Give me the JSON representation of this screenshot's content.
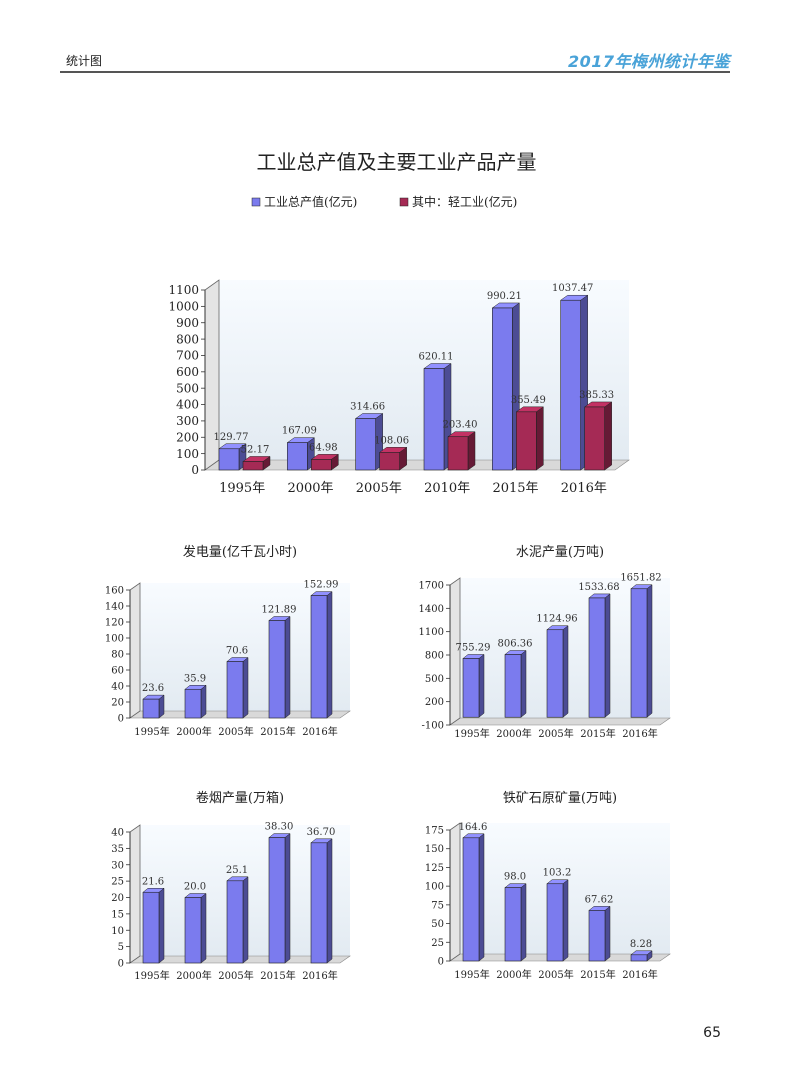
{
  "header": {
    "section": "统计图",
    "yearbook": "2017年梅州统计年鉴"
  },
  "page_number": "65",
  "chart_data": [
    {
      "id": "industry",
      "type": "bar",
      "title": "工业总产值及主要工业产品产量",
      "legend_position": "top",
      "categories": [
        "1995年",
        "2000年",
        "2005年",
        "2010年",
        "2015年",
        "2016年"
      ],
      "series": [
        {
          "name": "工业总产值(亿元)",
          "color": "#7b7bee",
          "values": [
            129.77,
            167.09,
            314.66,
            620.11,
            990.21,
            1037.47
          ],
          "labels": [
            "129.77",
            "167.09",
            "314.66",
            "620.11",
            "990.21",
            "1037.47"
          ]
        },
        {
          "name": "其中：轻工业(亿元)",
          "color": "#a52a55",
          "values": [
            52.17,
            64.98,
            108.06,
            203.4,
            355.49,
            385.33
          ],
          "labels": [
            "52.17",
            "64.98",
            "108.06",
            "203.40",
            "355.49",
            "385.33"
          ]
        }
      ],
      "ylim": [
        0,
        1100
      ],
      "yticks": [
        0,
        100,
        200,
        300,
        400,
        500,
        600,
        700,
        800,
        900,
        1000,
        1100
      ]
    },
    {
      "id": "power",
      "type": "bar",
      "title": "发电量(亿千瓦小时)",
      "categories": [
        "1995年",
        "2000年",
        "2005年",
        "2015年",
        "2016年"
      ],
      "series": [
        {
          "color": "#7b7bee",
          "values": [
            23.6,
            35.9,
            70.6,
            121.89,
            152.99
          ],
          "labels": [
            "23.6",
            "35.9",
            "70.6",
            "121.89",
            "152.99"
          ]
        }
      ],
      "ylim": [
        0,
        160
      ],
      "yticks": [
        0,
        20,
        40,
        60,
        80,
        100,
        120,
        140,
        160
      ]
    },
    {
      "id": "cement",
      "type": "bar",
      "title": "水泥产量(万吨)",
      "categories": [
        "1995年",
        "2000年",
        "2005年",
        "2015年",
        "2016年"
      ],
      "series": [
        {
          "color": "#7b7bee",
          "values": [
            755.29,
            806.36,
            1124.96,
            1533.68,
            1651.82
          ],
          "labels": [
            "755.29",
            "806.36",
            "1124.96",
            "1533.68",
            "1651.82"
          ]
        }
      ],
      "ylim": [
        -100,
        1700
      ],
      "yticks": [
        -100,
        200,
        500,
        800,
        1100,
        1400,
        1700
      ]
    },
    {
      "id": "cigarettes",
      "type": "bar",
      "title": "卷烟产量(万箱)",
      "categories": [
        "1995年",
        "2000年",
        "2005年",
        "2015年",
        "2016年"
      ],
      "series": [
        {
          "color": "#7b7bee",
          "values": [
            21.6,
            20.0,
            25.1,
            38.3,
            36.7
          ],
          "labels": [
            "21.6",
            "20.0",
            "25.1",
            "38.30",
            "36.70"
          ]
        }
      ],
      "ylim": [
        0,
        40
      ],
      "yticks": [
        0,
        5,
        10,
        15,
        20,
        25,
        30,
        35,
        40
      ]
    },
    {
      "id": "ironore",
      "type": "bar",
      "title": "铁矿石原矿量(万吨)",
      "categories": [
        "1995年",
        "2000年",
        "2005年",
        "2015年",
        "2016年"
      ],
      "series": [
        {
          "color": "#7b7bee",
          "values": [
            164.6,
            98.0,
            103.2,
            67.62,
            8.28
          ],
          "labels": [
            "164.6",
            "98.0",
            "103.2",
            "67.62",
            "8.28"
          ]
        }
      ],
      "ylim": [
        0,
        175
      ],
      "yticks": [
        0,
        25,
        50,
        75,
        100,
        125,
        150,
        175
      ]
    }
  ]
}
